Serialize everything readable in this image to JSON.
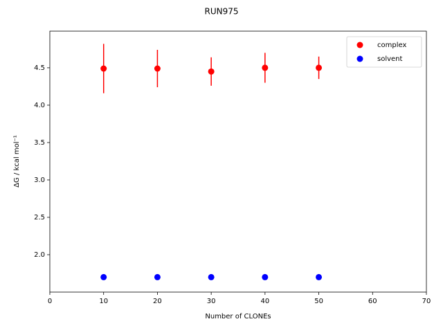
{
  "chart_data": {
    "type": "scatter",
    "title": "RUN975",
    "xlabel": "Number of CLONEs",
    "ylabel": "ΔG / kcal mol⁻¹",
    "x": [
      10,
      20,
      30,
      40,
      50
    ],
    "series": [
      {
        "name": "complex",
        "color": "#ff0000",
        "values": [
          4.49,
          4.49,
          4.45,
          4.5,
          4.5
        ],
        "errors": [
          0.33,
          0.25,
          0.19,
          0.2,
          0.15
        ]
      },
      {
        "name": "solvent",
        "color": "#0000ff",
        "values": [
          1.7,
          1.7,
          1.7,
          1.7,
          1.7
        ],
        "errors": [
          0.01,
          0.01,
          0.01,
          0.01,
          0.01
        ]
      }
    ],
    "xlim": [
      0,
      70
    ],
    "xticks": [
      0,
      10,
      20,
      30,
      40,
      50,
      60,
      70
    ],
    "ylim": [
      1.5,
      4.99
    ],
    "yticks": [
      {
        "value": 2,
        "label": "2.0"
      },
      {
        "value": 2.5,
        "label": "2.5"
      },
      {
        "value": 3,
        "label": "3.0"
      },
      {
        "value": 3.5,
        "label": "3.5"
      },
      {
        "value": 4,
        "label": "4.0"
      },
      {
        "value": 4.5,
        "label": "4.5"
      }
    ],
    "legend": "upper right",
    "grid": false
  }
}
